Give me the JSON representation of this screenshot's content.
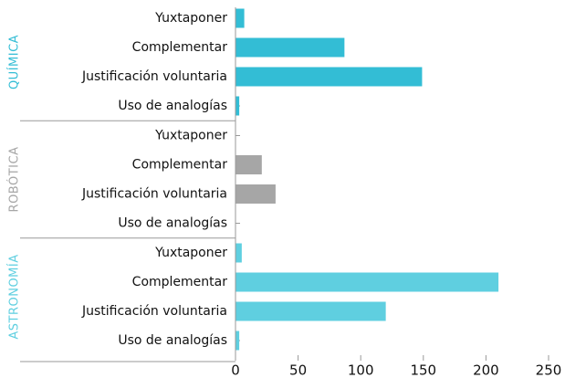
{
  "chart_data": {
    "type": "bar",
    "categories": [
      "Yuxtaponer",
      "Complementar",
      "Justificación voluntaria",
      "Uso de analogías"
    ],
    "series": [
      {
        "name": "QUÍMICA",
        "color": "#33bdd5",
        "values": [
          7,
          87,
          149,
          3
        ]
      },
      {
        "name": "ROBÓTICA",
        "color": "#a6a6a6",
        "values": [
          0,
          21,
          32,
          0
        ]
      },
      {
        "name": "ASTRONOMÍA",
        "color": "#5fcfe0",
        "values": [
          5,
          210,
          120,
          3
        ]
      }
    ],
    "xlim": [
      0,
      250
    ],
    "xticks": [
      0,
      50,
      100,
      150,
      200,
      250
    ]
  }
}
